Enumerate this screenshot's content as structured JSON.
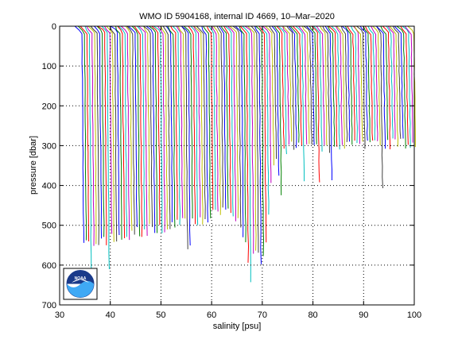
{
  "chart_data": {
    "type": "line",
    "title": "WMO ID 5904168, internal ID 4669, 10–Mar–2020",
    "xlabel": "salinity [psu]",
    "ylabel": "pressure [dbar]",
    "xlim": [
      30,
      100
    ],
    "ylim": [
      0,
      700
    ],
    "y_reversed": true,
    "grid": true,
    "x_ticks": [
      "30",
      "40",
      "50",
      "60",
      "70",
      "80",
      "90",
      "100"
    ],
    "y_ticks": [
      "0",
      "100",
      "200",
      "300",
      "400",
      "500",
      "600",
      "700"
    ],
    "series_colors": [
      "#0000ff",
      "#008000",
      "#ff0000",
      "#00bfbf",
      "#bf00bf",
      "#bfbf00",
      "#404040"
    ],
    "profile_offset_step": 0.5,
    "profile_base_salinity": 34.4,
    "profile_top_pressure": 15,
    "profile_count": 132,
    "bottom_pressure_profile": {
      "x": [
        34.4,
        36,
        40,
        44,
        48,
        52,
        56,
        60,
        64,
        66,
        68,
        70,
        72,
        76,
        80,
        84,
        88,
        92,
        96,
        100
      ],
      "y": [
        550,
        548,
        535,
        520,
        510,
        500,
        490,
        475,
        465,
        520,
        570,
        590,
        330,
        300,
        310,
        305,
        300,
        300,
        295,
        290
      ]
    }
  },
  "logo": {
    "name": "noaa-logo",
    "text": "NOAA"
  }
}
